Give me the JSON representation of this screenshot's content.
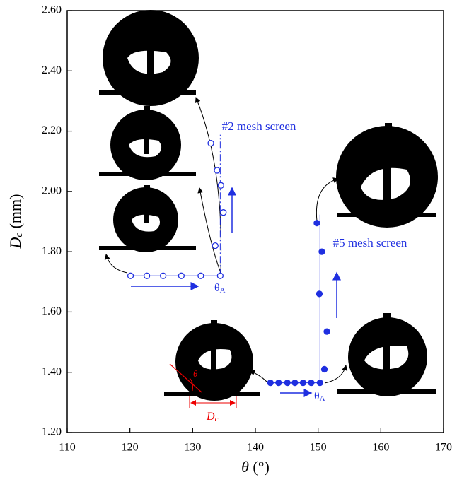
{
  "chart_data": {
    "type": "scatter",
    "xlabel": {
      "symbol": "θ",
      "unit": "(°)"
    },
    "ylabel": {
      "symbol": "D",
      "subscript": "c",
      "unit": "(mm)"
    },
    "xlim": [
      110,
      170
    ],
    "xticks": [
      110,
      120,
      130,
      140,
      150,
      160,
      170
    ],
    "ylim": [
      1.2,
      2.6
    ],
    "yticks": [
      {
        "value": 1.2,
        "label": "1.20"
      },
      {
        "value": 1.4,
        "label": "1.40"
      },
      {
        "value": 1.6,
        "label": "1.60"
      },
      {
        "value": 1.8,
        "label": "1.80"
      },
      {
        "value": 2.0,
        "label": "2.00"
      },
      {
        "value": 2.2,
        "label": "2.20"
      },
      {
        "value": 2.4,
        "label": "2.40"
      },
      {
        "value": 2.6,
        "label": "2.60"
      }
    ],
    "series": [
      {
        "name": "#2 mesh screen",
        "color": "#1f2fe0",
        "filled": false,
        "x": [
          120.1,
          122.7,
          125.3,
          128.2,
          131.3,
          134.4,
          133.6,
          134.9,
          134.5,
          133.9,
          132.9
        ],
        "values": [
          1.72,
          1.72,
          1.72,
          1.72,
          1.72,
          1.72,
          1.82,
          1.93,
          2.02,
          2.07,
          2.16
        ]
      },
      {
        "name": "#5 mesh screen",
        "color": "#1f2fe0",
        "filled": true,
        "x": [
          142.4,
          143.7,
          145.1,
          146.3,
          147.6,
          148.9,
          150.3,
          151.0,
          151.4,
          150.2,
          150.6,
          149.8
        ],
        "values": [
          1.365,
          1.365,
          1.365,
          1.365,
          1.365,
          1.365,
          1.365,
          1.41,
          1.535,
          1.66,
          1.8,
          1.895
        ]
      }
    ],
    "annotations": {
      "contact_angle": {
        "symbol": "θ",
        "subscript": "A"
      },
      "angle": "θ",
      "diameter": {
        "symbol": "D",
        "subscript": "c"
      }
    }
  }
}
